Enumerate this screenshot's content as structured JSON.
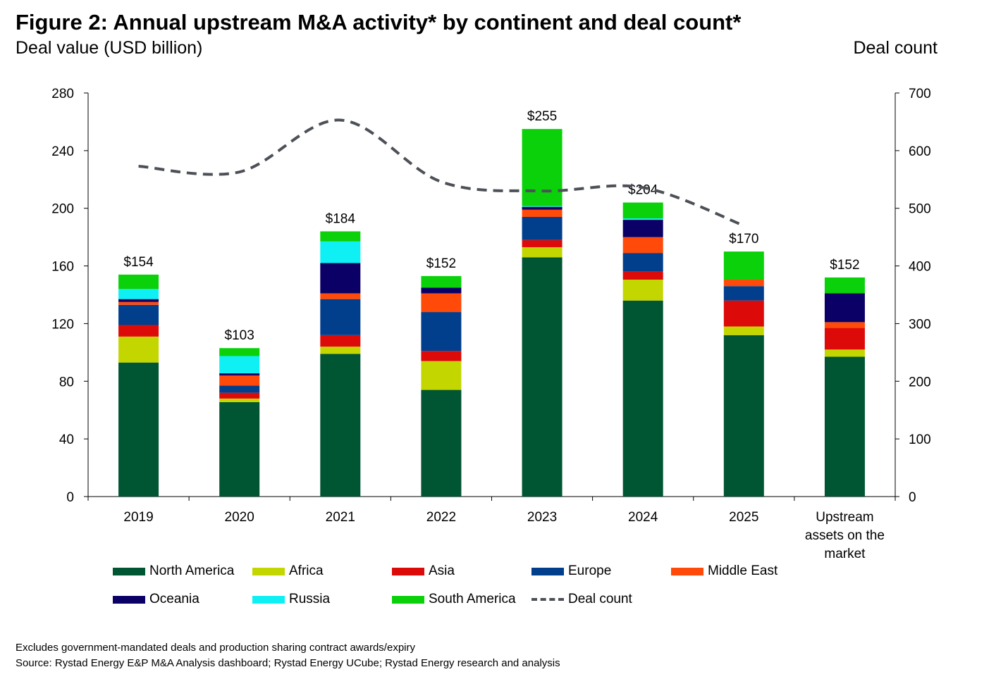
{
  "chart_data": {
    "type": "bar",
    "stacked": true,
    "title": "Figure 2: Annual upstream M&A activity* by continent and deal count*",
    "ylabel": "Deal value (USD billion)",
    "y2label": "Deal count",
    "ylim": [
      0,
      280
    ],
    "y2lim": [
      0,
      700
    ],
    "yticks": [
      0,
      40,
      80,
      120,
      160,
      200,
      240,
      280
    ],
    "y2ticks": [
      0,
      100,
      200,
      300,
      400,
      500,
      600,
      700
    ],
    "categories": [
      "2019",
      "2020",
      "2021",
      "2022",
      "2023",
      "2024",
      "2025",
      "Upstream assets on the market"
    ],
    "totals_labels": [
      "$154",
      "$103",
      "$184",
      "$152",
      "$255",
      "$204",
      "$170",
      "$152"
    ],
    "series": [
      {
        "name": "North America",
        "color": "#005533",
        "values": [
          93,
          65.5,
          99,
          74,
          166,
          136,
          112,
          97
        ]
      },
      {
        "name": "Africa",
        "color": "#c3d600",
        "values": [
          18,
          2.5,
          5,
          20,
          7,
          14.5,
          6,
          5
        ]
      },
      {
        "name": "Asia",
        "color": "#dd0a0a",
        "values": [
          8,
          4,
          8,
          7,
          5,
          5.5,
          18,
          15
        ]
      },
      {
        "name": "Europe",
        "color": "#013e8c",
        "values": [
          14,
          5,
          25,
          27,
          16,
          13,
          10,
          0
        ]
      },
      {
        "name": "Middle East",
        "color": "#ff4a0a",
        "values": [
          2,
          7,
          4,
          13,
          5,
          11,
          4.5,
          4
        ]
      },
      {
        "name": "Oceania",
        "color": "#0b0066",
        "values": [
          2,
          1.5,
          21,
          4,
          2,
          12,
          0,
          20
        ]
      },
      {
        "name": "Russia",
        "color": "#0ff0f5",
        "values": [
          7,
          12,
          15,
          0,
          0.5,
          1,
          0,
          0
        ]
      },
      {
        "name": "South America",
        "color": "#0ad10a",
        "values": [
          10,
          5.5,
          7,
          8,
          53.5,
          11,
          19.5,
          11
        ]
      }
    ],
    "line": {
      "name": "Deal count",
      "color": "#4d5157",
      "axis": "right",
      "values": [
        573,
        563,
        653,
        546,
        530,
        536,
        470,
        null
      ]
    },
    "grid": false,
    "legend": "bottom"
  },
  "notes": [
    "Excludes government-mandated deals and production sharing contract awards/expiry",
    "Source: Rystad Energy E&P M&A Analysis dashboard; Rystad Energy UCube; Rystad Energy research and analysis"
  ]
}
